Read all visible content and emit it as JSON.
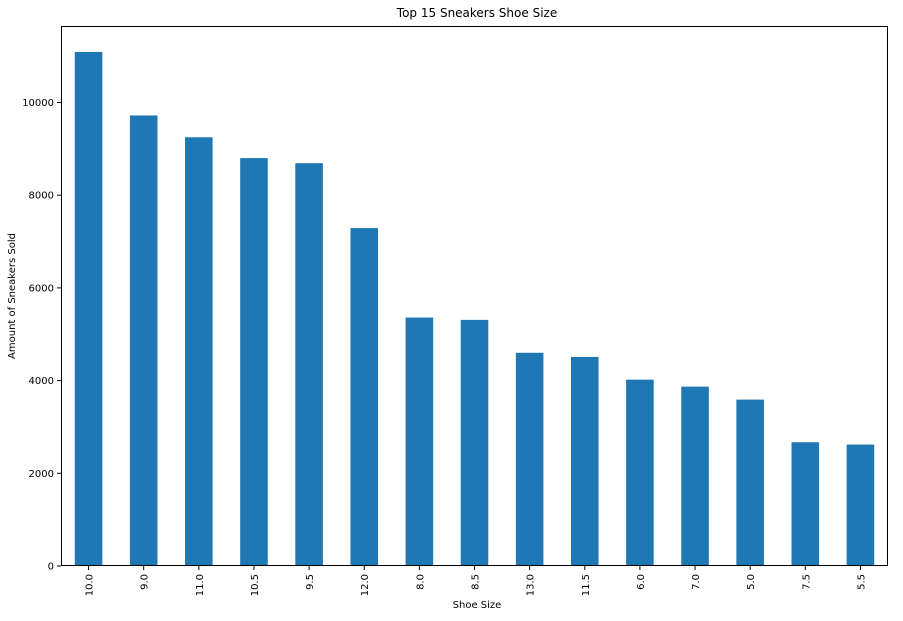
{
  "chart_data": {
    "type": "bar",
    "title": "Top 15 Sneakers Shoe Size",
    "xlabel": "Shoe Size",
    "ylabel": "Amount of Sneakers Sold",
    "categories": [
      "10.0",
      "9.0",
      "11.0",
      "10.5",
      "9.5",
      "12.0",
      "8.0",
      "8.5",
      "13.0",
      "11.5",
      "6.0",
      "7.0",
      "5.0",
      "7.5",
      "5.5"
    ],
    "values": [
      11090,
      9720,
      9250,
      8800,
      8690,
      7290,
      5360,
      5310,
      4600,
      4510,
      4020,
      3870,
      3590,
      2670,
      2620
    ],
    "ylim": [
      0,
      11650
    ],
    "yticks": [
      0,
      2000,
      4000,
      6000,
      8000,
      10000
    ],
    "grid": false,
    "legend": "none",
    "bar_color": "#1f77b4"
  }
}
